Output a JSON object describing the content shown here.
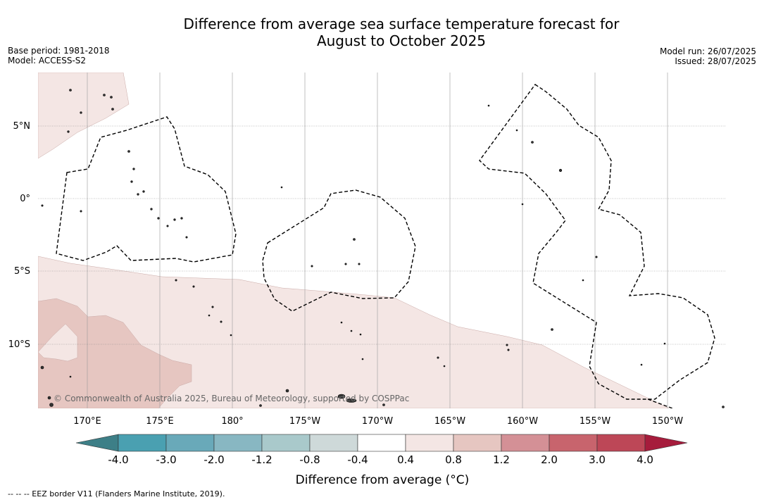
{
  "header": {
    "title_line1": "Difference from average sea surface temperature forecast for",
    "title_line2": "August to October 2025",
    "base_period": "Base period: 1981-2018",
    "model": "Model: ACCESS-S2",
    "model_run": "Model run: 26/07/2025",
    "issued": "Issued: 28/07/2025"
  },
  "map": {
    "lat_labels": [
      "5°N",
      "0°",
      "5°S",
      "10°S"
    ],
    "lon_labels": [
      "170°E",
      "175°E",
      "180°",
      "175°W",
      "170°W",
      "165°W",
      "160°W",
      "155°W",
      "150°W"
    ],
    "credit": "© Commonwealth of Australia 2025, Bureau of Meteorology, supported by COSPPac",
    "colors": {
      "light_warm": "#f4e6e4",
      "medium_warm": "#e6c6c1",
      "eez_line": "#000000",
      "grid": "#888888"
    }
  },
  "legend": {
    "ticks": [
      "-4.0",
      "-3.0",
      "-2.0",
      "-1.2",
      "-0.8",
      "-0.4",
      "0.4",
      "0.8",
      "1.2",
      "2.0",
      "3.0",
      "4.0"
    ],
    "colors": [
      "#3d7f87",
      "#4aa0b1",
      "#69a9b9",
      "#88b7c2",
      "#a9c9cb",
      "#ced9d9",
      "#ffffff",
      "#f4e6e4",
      "#e6c6c1",
      "#d49096",
      "#c8646d",
      "#bd4757",
      "#a61c3c"
    ],
    "label": "Difference from average (°C)"
  },
  "footnote": "--  --  -- EEZ border V11 (Flanders Marine Institute, 2019)."
}
